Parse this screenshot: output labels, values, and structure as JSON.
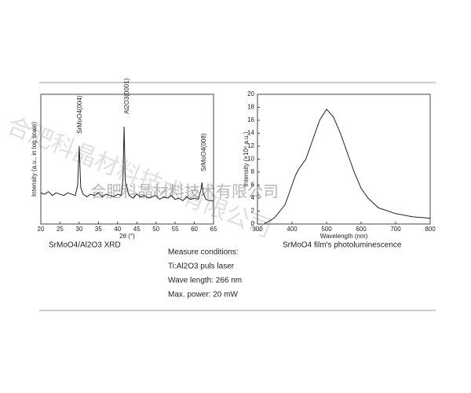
{
  "chart_data": [
    {
      "type": "line",
      "xlabel": "2θ (°)",
      "ylabel": "Intensity (a.u., in log scale)",
      "x": [
        20,
        21,
        22,
        23,
        24,
        25,
        26,
        27,
        28,
        29,
        29.6,
        30,
        30.4,
        31,
        32,
        33,
        34,
        35,
        36,
        37,
        38,
        39,
        40,
        41,
        41.4,
        41.7,
        42,
        43,
        44,
        45,
        46,
        47,
        48,
        49,
        50,
        51,
        52,
        53,
        54,
        55,
        56,
        57,
        58,
        59,
        60,
        61,
        61.7,
        62,
        62.3,
        63,
        64,
        65
      ],
      "series": [
        {
          "name": "XRD",
          "color": "#222",
          "values": [
            24,
            23,
            25,
            22,
            24,
            23,
            22,
            24,
            23,
            22,
            30,
            60,
            28,
            23,
            21,
            23,
            22,
            24,
            21,
            23,
            22,
            21,
            23,
            22,
            35,
            75,
            33,
            22,
            20,
            23,
            21,
            22,
            20,
            21,
            22,
            19,
            21,
            20,
            22,
            19,
            20,
            18,
            21,
            19,
            20,
            19,
            26,
            32,
            24,
            19,
            18,
            18
          ]
        }
      ],
      "xlim": [
        20,
        65
      ],
      "xticks": [
        20,
        25,
        30,
        35,
        40,
        45,
        50,
        55,
        60,
        65
      ],
      "ylim": [
        0,
        100
      ],
      "annotations": [
        "SrMoO4(004)",
        "Al2O3(0001)",
        "SrMoO4(008)"
      ],
      "caption": "SrMoO4/Al2O3  XRD"
    },
    {
      "type": "line",
      "xlabel": "Wavelength (nm)",
      "ylabel": "Intensity (×10⁶ a.u.)",
      "x": [
        320,
        330,
        350,
        380,
        400,
        410,
        420,
        440,
        460,
        480,
        500,
        520,
        540,
        560,
        580,
        600,
        620,
        650,
        700,
        750,
        800
      ],
      "series": [
        {
          "name": "PL",
          "color": "#222",
          "values": [
            0.1,
            0.3,
            1,
            3,
            6,
            7.5,
            8.5,
            10,
            13,
            16,
            17.7,
            16.5,
            14,
            11,
            8,
            5.5,
            4,
            2.5,
            1.6,
            1.1,
            0.9
          ]
        }
      ],
      "xlim": [
        300,
        800
      ],
      "xticks": [
        300,
        400,
        500,
        600,
        700,
        800
      ],
      "ylim": [
        0,
        20
      ],
      "yticks": [
        0,
        2,
        4,
        6,
        8,
        10,
        12,
        14,
        16,
        18,
        20
      ],
      "caption": "SrMoO4   film's photoluminescence"
    }
  ],
  "conditions": [
    "Measure conditions:",
    "Ti:Al2O3 puls laser",
    "Wave length:  266 nm",
    "Max. power:  20 mW"
  ],
  "watermark": "合肥科晶材料技术有限公司"
}
